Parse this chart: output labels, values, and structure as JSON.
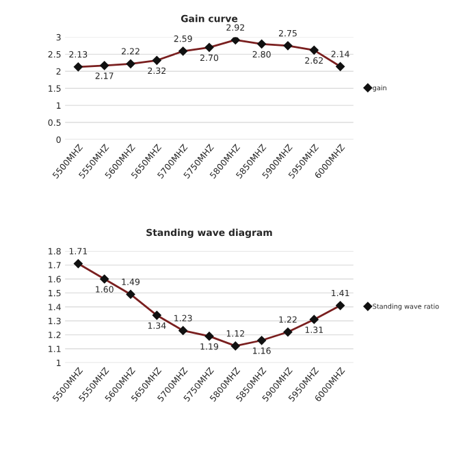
{
  "chart_data": [
    {
      "type": "line",
      "title": "Gain curve",
      "categories": [
        "5500MHZ",
        "5550MHZ",
        "5600MHZ",
        "5650MHZ",
        "5700MHZ",
        "5750MHZ",
        "5800MHZ",
        "5850MHZ",
        "5900MHZ",
        "5950MHZ",
        "6000MHZ"
      ],
      "series": [
        {
          "name": "gain",
          "color": "#7a1f1f",
          "values": [
            2.13,
            2.17,
            2.22,
            2.32,
            2.59,
            2.7,
            2.92,
            2.8,
            2.75,
            2.62,
            2.14
          ],
          "value_labels": [
            "2.13",
            "2.17",
            "2.22",
            "2.32",
            "2.59",
            "2.70",
            "2.92",
            "2.80",
            "2.75",
            "2.62",
            "2.14"
          ]
        }
      ],
      "ylim": [
        0,
        3
      ],
      "yticks": [
        0,
        0.5,
        1,
        1.5,
        2,
        2.5,
        3
      ],
      "grid": "y",
      "legend": "right",
      "marker": "diamond"
    },
    {
      "type": "line",
      "title": "Standing wave diagram",
      "categories": [
        "5500MHZ",
        "5550MHZ",
        "5600MHZ",
        "5650MHZ",
        "5700MHZ",
        "5750MHZ",
        "5800MHZ",
        "5850MHZ",
        "5900MHZ",
        "5950MHZ",
        "6000MHZ"
      ],
      "series": [
        {
          "name": "Standing wave ratio",
          "color": "#7a1f1f",
          "values": [
            1.71,
            1.6,
            1.49,
            1.34,
            1.23,
            1.19,
            1.12,
            1.16,
            1.22,
            1.31,
            1.41
          ],
          "value_labels": [
            "1.71",
            "1.60",
            "1.49",
            "1.34",
            "1.23",
            "1.19",
            "1.12",
            "1.16",
            "1.22",
            "1.31",
            "1.41"
          ]
        }
      ],
      "ylim": [
        1,
        1.8
      ],
      "yticks": [
        1,
        1.1,
        1.2,
        1.3,
        1.4,
        1.5,
        1.6,
        1.7,
        1.8
      ],
      "grid": "y",
      "legend": "right",
      "marker": "diamond"
    }
  ]
}
